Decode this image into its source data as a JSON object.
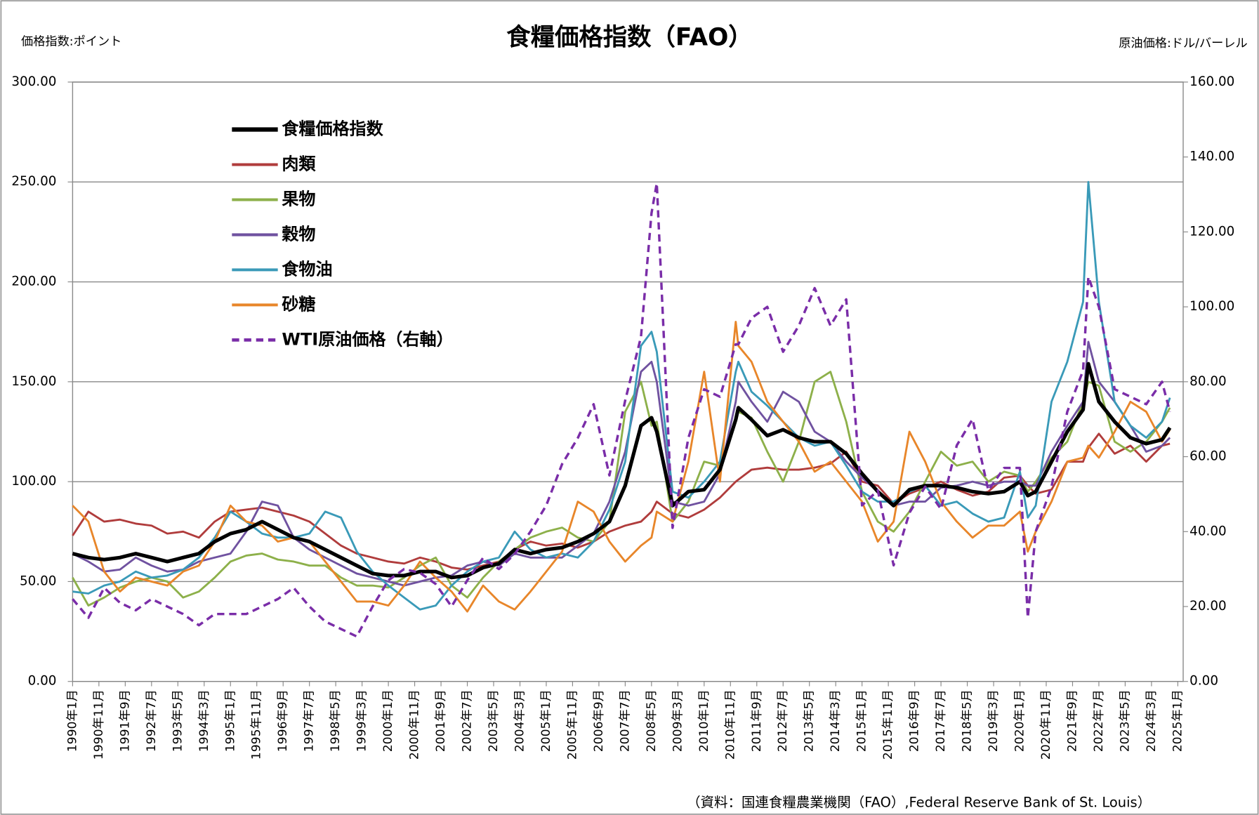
{
  "chart_data": {
    "type": "line",
    "title": "食糧価格指数（FAO）",
    "y_label": "価格指数:ポイント",
    "y2_label": "原油価格:ドル/バーレル",
    "source": "（資料：国連食糧農業機関（FAO）,Federal Reserve Bank of St. Louis）",
    "legend": "upper left",
    "grid": true,
    "xlim": [
      1990,
      2025.17
    ],
    "xticks": [
      {
        "value": 1990.0,
        "label": "1990年1月"
      },
      {
        "value": 1990.833,
        "label": "1990年11月"
      },
      {
        "value": 1991.667,
        "label": "1991年9月"
      },
      {
        "value": 1992.5,
        "label": "1992年7月"
      },
      {
        "value": 1993.333,
        "label": "1993年5月"
      },
      {
        "value": 1994.167,
        "label": "1994年3月"
      },
      {
        "value": 1995.0,
        "label": "1995年1月"
      },
      {
        "value": 1995.833,
        "label": "1995年11月"
      },
      {
        "value": 1996.667,
        "label": "1996年9月"
      },
      {
        "value": 1997.5,
        "label": "1997年7月"
      },
      {
        "value": 1998.333,
        "label": "1998年5月"
      },
      {
        "value": 1999.167,
        "label": "1999年3月"
      },
      {
        "value": 2000.0,
        "label": "2000年1月"
      },
      {
        "value": 2000.833,
        "label": "2000年11月"
      },
      {
        "value": 2001.667,
        "label": "2001年9月"
      },
      {
        "value": 2002.5,
        "label": "2002年7月"
      },
      {
        "value": 2003.333,
        "label": "2003年5月"
      },
      {
        "value": 2004.167,
        "label": "2004年3月"
      },
      {
        "value": 2005.0,
        "label": "2005年1月"
      },
      {
        "value": 2005.833,
        "label": "2005年11月"
      },
      {
        "value": 2006.667,
        "label": "2006年9月"
      },
      {
        "value": 2007.5,
        "label": "2007年7月"
      },
      {
        "value": 2008.333,
        "label": "2008年5月"
      },
      {
        "value": 2009.167,
        "label": "2009年3月"
      },
      {
        "value": 2010.0,
        "label": "2010年1月"
      },
      {
        "value": 2010.833,
        "label": "2010年11月"
      },
      {
        "value": 2011.667,
        "label": "2011年9月"
      },
      {
        "value": 2012.5,
        "label": "2012年7月"
      },
      {
        "value": 2013.333,
        "label": "2013年5月"
      },
      {
        "value": 2014.167,
        "label": "2014年3月"
      },
      {
        "value": 2015.0,
        "label": "2015年1月"
      },
      {
        "value": 2015.833,
        "label": "2015年11月"
      },
      {
        "value": 2016.667,
        "label": "2016年9月"
      },
      {
        "value": 2017.5,
        "label": "2017年7月"
      },
      {
        "value": 2018.333,
        "label": "2018年5月"
      },
      {
        "value": 2019.167,
        "label": "2019年3月"
      },
      {
        "value": 2020.0,
        "label": "2020年1月"
      },
      {
        "value": 2020.833,
        "label": "2020年11月"
      },
      {
        "value": 2021.667,
        "label": "2021年9月"
      },
      {
        "value": 2022.5,
        "label": "2022年7月"
      },
      {
        "value": 2023.333,
        "label": "2023年5月"
      },
      {
        "value": 2024.167,
        "label": "2024年3月"
      },
      {
        "value": 2025.0,
        "label": "2025年1月"
      }
    ],
    "ylim": [
      0,
      300
    ],
    "yticks": [
      {
        "value": 0,
        "label": "0.00"
      },
      {
        "value": 50,
        "label": "50.00"
      },
      {
        "value": 100,
        "label": "100.00"
      },
      {
        "value": 150,
        "label": "150.00"
      },
      {
        "value": 200,
        "label": "200.00"
      },
      {
        "value": 250,
        "label": "250.00"
      },
      {
        "value": 300,
        "label": "300.00"
      }
    ],
    "y2lim": [
      0,
      160
    ],
    "y2ticks": [
      {
        "value": 0,
        "label": "0.00"
      },
      {
        "value": 20,
        "label": "20.00"
      },
      {
        "value": 40,
        "label": "40.00"
      },
      {
        "value": 60,
        "label": "60.00"
      },
      {
        "value": 80,
        "label": "80.00"
      },
      {
        "value": 100,
        "label": "100.00"
      },
      {
        "value": 120,
        "label": "120.00"
      },
      {
        "value": 140,
        "label": "140.00"
      },
      {
        "value": 160,
        "label": "160.00"
      }
    ],
    "x": [
      1990.0,
      1990.5,
      1991.0,
      1991.5,
      1992.0,
      1992.5,
      1993.0,
      1993.5,
      1994.0,
      1994.5,
      1995.0,
      1995.5,
      1996.0,
      1996.5,
      1997.0,
      1997.5,
      1998.0,
      1998.5,
      1999.0,
      1999.5,
      2000.0,
      2000.5,
      2001.0,
      2001.5,
      2002.0,
      2002.5,
      2003.0,
      2003.5,
      2004.0,
      2004.5,
      2005.0,
      2005.5,
      2006.0,
      2006.5,
      2007.0,
      2007.5,
      2008.0,
      2008.333,
      2008.5,
      2009.0,
      2009.5,
      2010.0,
      2010.5,
      2011.0,
      2011.083,
      2011.5,
      2012.0,
      2012.5,
      2013.0,
      2013.5,
      2014.0,
      2014.5,
      2015.0,
      2015.5,
      2016.0,
      2016.5,
      2017.0,
      2017.5,
      2018.0,
      2018.5,
      2019.0,
      2019.5,
      2020.0,
      2020.25,
      2020.5,
      2021.0,
      2021.5,
      2022.0,
      2022.167,
      2022.5,
      2023.0,
      2023.5,
      2024.0,
      2024.5,
      2024.75
    ],
    "series": [
      {
        "name": "食糧価格指数",
        "color": "#000000",
        "width": 4.5,
        "values": [
          64,
          62,
          61,
          62,
          64,
          62,
          60,
          62,
          64,
          70,
          74,
          76,
          80,
          76,
          72,
          70,
          66,
          62,
          58,
          54,
          53,
          53,
          55,
          55,
          52,
          53,
          57,
          59,
          66,
          64,
          66,
          67,
          70,
          74,
          80,
          98,
          128,
          132,
          125,
          88,
          95,
          96,
          106,
          131,
          137,
          131,
          123,
          126,
          122,
          120,
          120,
          114,
          104,
          95,
          88,
          96,
          98,
          98,
          97,
          95,
          94,
          95,
          100,
          93,
          95,
          110,
          125,
          136,
          159,
          140,
          130,
          122,
          119,
          121,
          127
        ]
      },
      {
        "name": "肉類",
        "color": "#b03c3c",
        "width": 2.5,
        "values": [
          73,
          85,
          80,
          81,
          79,
          78,
          74,
          75,
          72,
          80,
          85,
          86,
          87,
          85,
          83,
          80,
          74,
          68,
          64,
          62,
          60,
          59,
          62,
          60,
          57,
          56,
          58,
          60,
          66,
          70,
          68,
          69,
          67,
          70,
          75,
          78,
          80,
          85,
          90,
          84,
          82,
          86,
          92,
          100,
          101,
          106,
          107,
          106,
          106,
          107,
          109,
          115,
          100,
          98,
          89,
          94,
          97,
          100,
          96,
          93,
          95,
          102,
          103,
          98,
          94,
          96,
          110,
          110,
          117,
          124,
          114,
          118,
          110,
          118,
          119
        ]
      },
      {
        "name": "果物",
        "color": "#8db04a",
        "width": 2.5,
        "values": [
          52,
          38,
          42,
          47,
          50,
          52,
          50,
          42,
          45,
          52,
          60,
          63,
          64,
          61,
          60,
          58,
          58,
          52,
          48,
          48,
          47,
          52,
          58,
          62,
          48,
          42,
          52,
          60,
          66,
          72,
          75,
          77,
          72,
          70,
          80,
          135,
          150,
          128,
          130,
          80,
          90,
          110,
          108,
          130,
          135,
          132,
          115,
          100,
          120,
          150,
          155,
          130,
          95,
          80,
          75,
          85,
          100,
          115,
          108,
          110,
          100,
          105,
          103,
          95,
          100,
          112,
          120,
          140,
          150,
          148,
          120,
          115,
          120,
          130,
          137
        ]
      },
      {
        "name": "穀物",
        "color": "#7052a0",
        "width": 2.5,
        "values": [
          64,
          60,
          55,
          56,
          62,
          58,
          55,
          56,
          60,
          62,
          64,
          75,
          90,
          88,
          72,
          66,
          62,
          58,
          54,
          52,
          50,
          48,
          50,
          52,
          53,
          58,
          60,
          58,
          64,
          62,
          62,
          62,
          68,
          74,
          90,
          115,
          155,
          160,
          150,
          90,
          88,
          90,
          104,
          140,
          150,
          140,
          130,
          145,
          140,
          125,
          120,
          110,
          102,
          95,
          88,
          90,
          90,
          97,
          98,
          100,
          98,
          100,
          100,
          98,
          98,
          115,
          128,
          140,
          170,
          150,
          140,
          128,
          115,
          118,
          122
        ]
      },
      {
        "name": "食物油",
        "color": "#3a9ab8",
        "width": 2.5,
        "values": [
          45,
          44,
          48,
          50,
          55,
          52,
          53,
          56,
          62,
          72,
          85,
          80,
          74,
          72,
          72,
          74,
          85,
          82,
          65,
          55,
          48,
          42,
          36,
          38,
          48,
          55,
          60,
          62,
          75,
          66,
          62,
          64,
          62,
          70,
          86,
          110,
          168,
          175,
          165,
          95,
          92,
          100,
          110,
          155,
          160,
          145,
          138,
          130,
          122,
          118,
          120,
          108,
          95,
          90,
          90,
          95,
          98,
          88,
          90,
          84,
          80,
          82,
          105,
          82,
          88,
          140,
          160,
          190,
          250,
          190,
          140,
          128,
          122,
          130,
          142
        ]
      },
      {
        "name": "砂糖",
        "color": "#e8862a",
        "width": 2.5,
        "values": [
          88,
          80,
          55,
          45,
          52,
          50,
          48,
          55,
          58,
          70,
          88,
          80,
          78,
          70,
          72,
          70,
          60,
          50,
          40,
          40,
          38,
          48,
          60,
          52,
          45,
          35,
          48,
          40,
          36,
          45,
          55,
          65,
          90,
          85,
          70,
          60,
          68,
          72,
          85,
          80,
          110,
          155,
          100,
          180,
          168,
          160,
          140,
          130,
          120,
          105,
          110,
          100,
          90,
          70,
          80,
          125,
          110,
          90,
          80,
          72,
          78,
          78,
          85,
          65,
          75,
          90,
          110,
          112,
          118,
          112,
          125,
          140,
          135,
          120,
          126
        ]
      },
      {
        "name": "WTI原油価格（右軸）",
        "color": "#7a2da8",
        "width": 3,
        "dashed": true,
        "axis": "y2",
        "values": [
          22,
          17,
          25,
          21,
          19,
          22,
          20,
          18,
          15,
          18,
          18,
          18,
          20,
          22,
          25,
          20,
          16,
          14,
          12,
          20,
          27,
          30,
          29,
          26,
          20,
          27,
          33,
          30,
          34,
          40,
          47,
          58,
          65,
          74,
          55,
          75,
          92,
          125,
          133,
          41,
          65,
          78,
          76,
          90,
          90,
          97,
          100,
          88,
          95,
          105,
          95,
          102,
          47,
          51,
          31,
          45,
          52,
          46,
          63,
          70,
          51,
          57,
          57,
          17,
          40,
          52,
          72,
          83,
          108,
          100,
          78,
          76,
          74,
          80,
          72
        ]
      }
    ]
  }
}
